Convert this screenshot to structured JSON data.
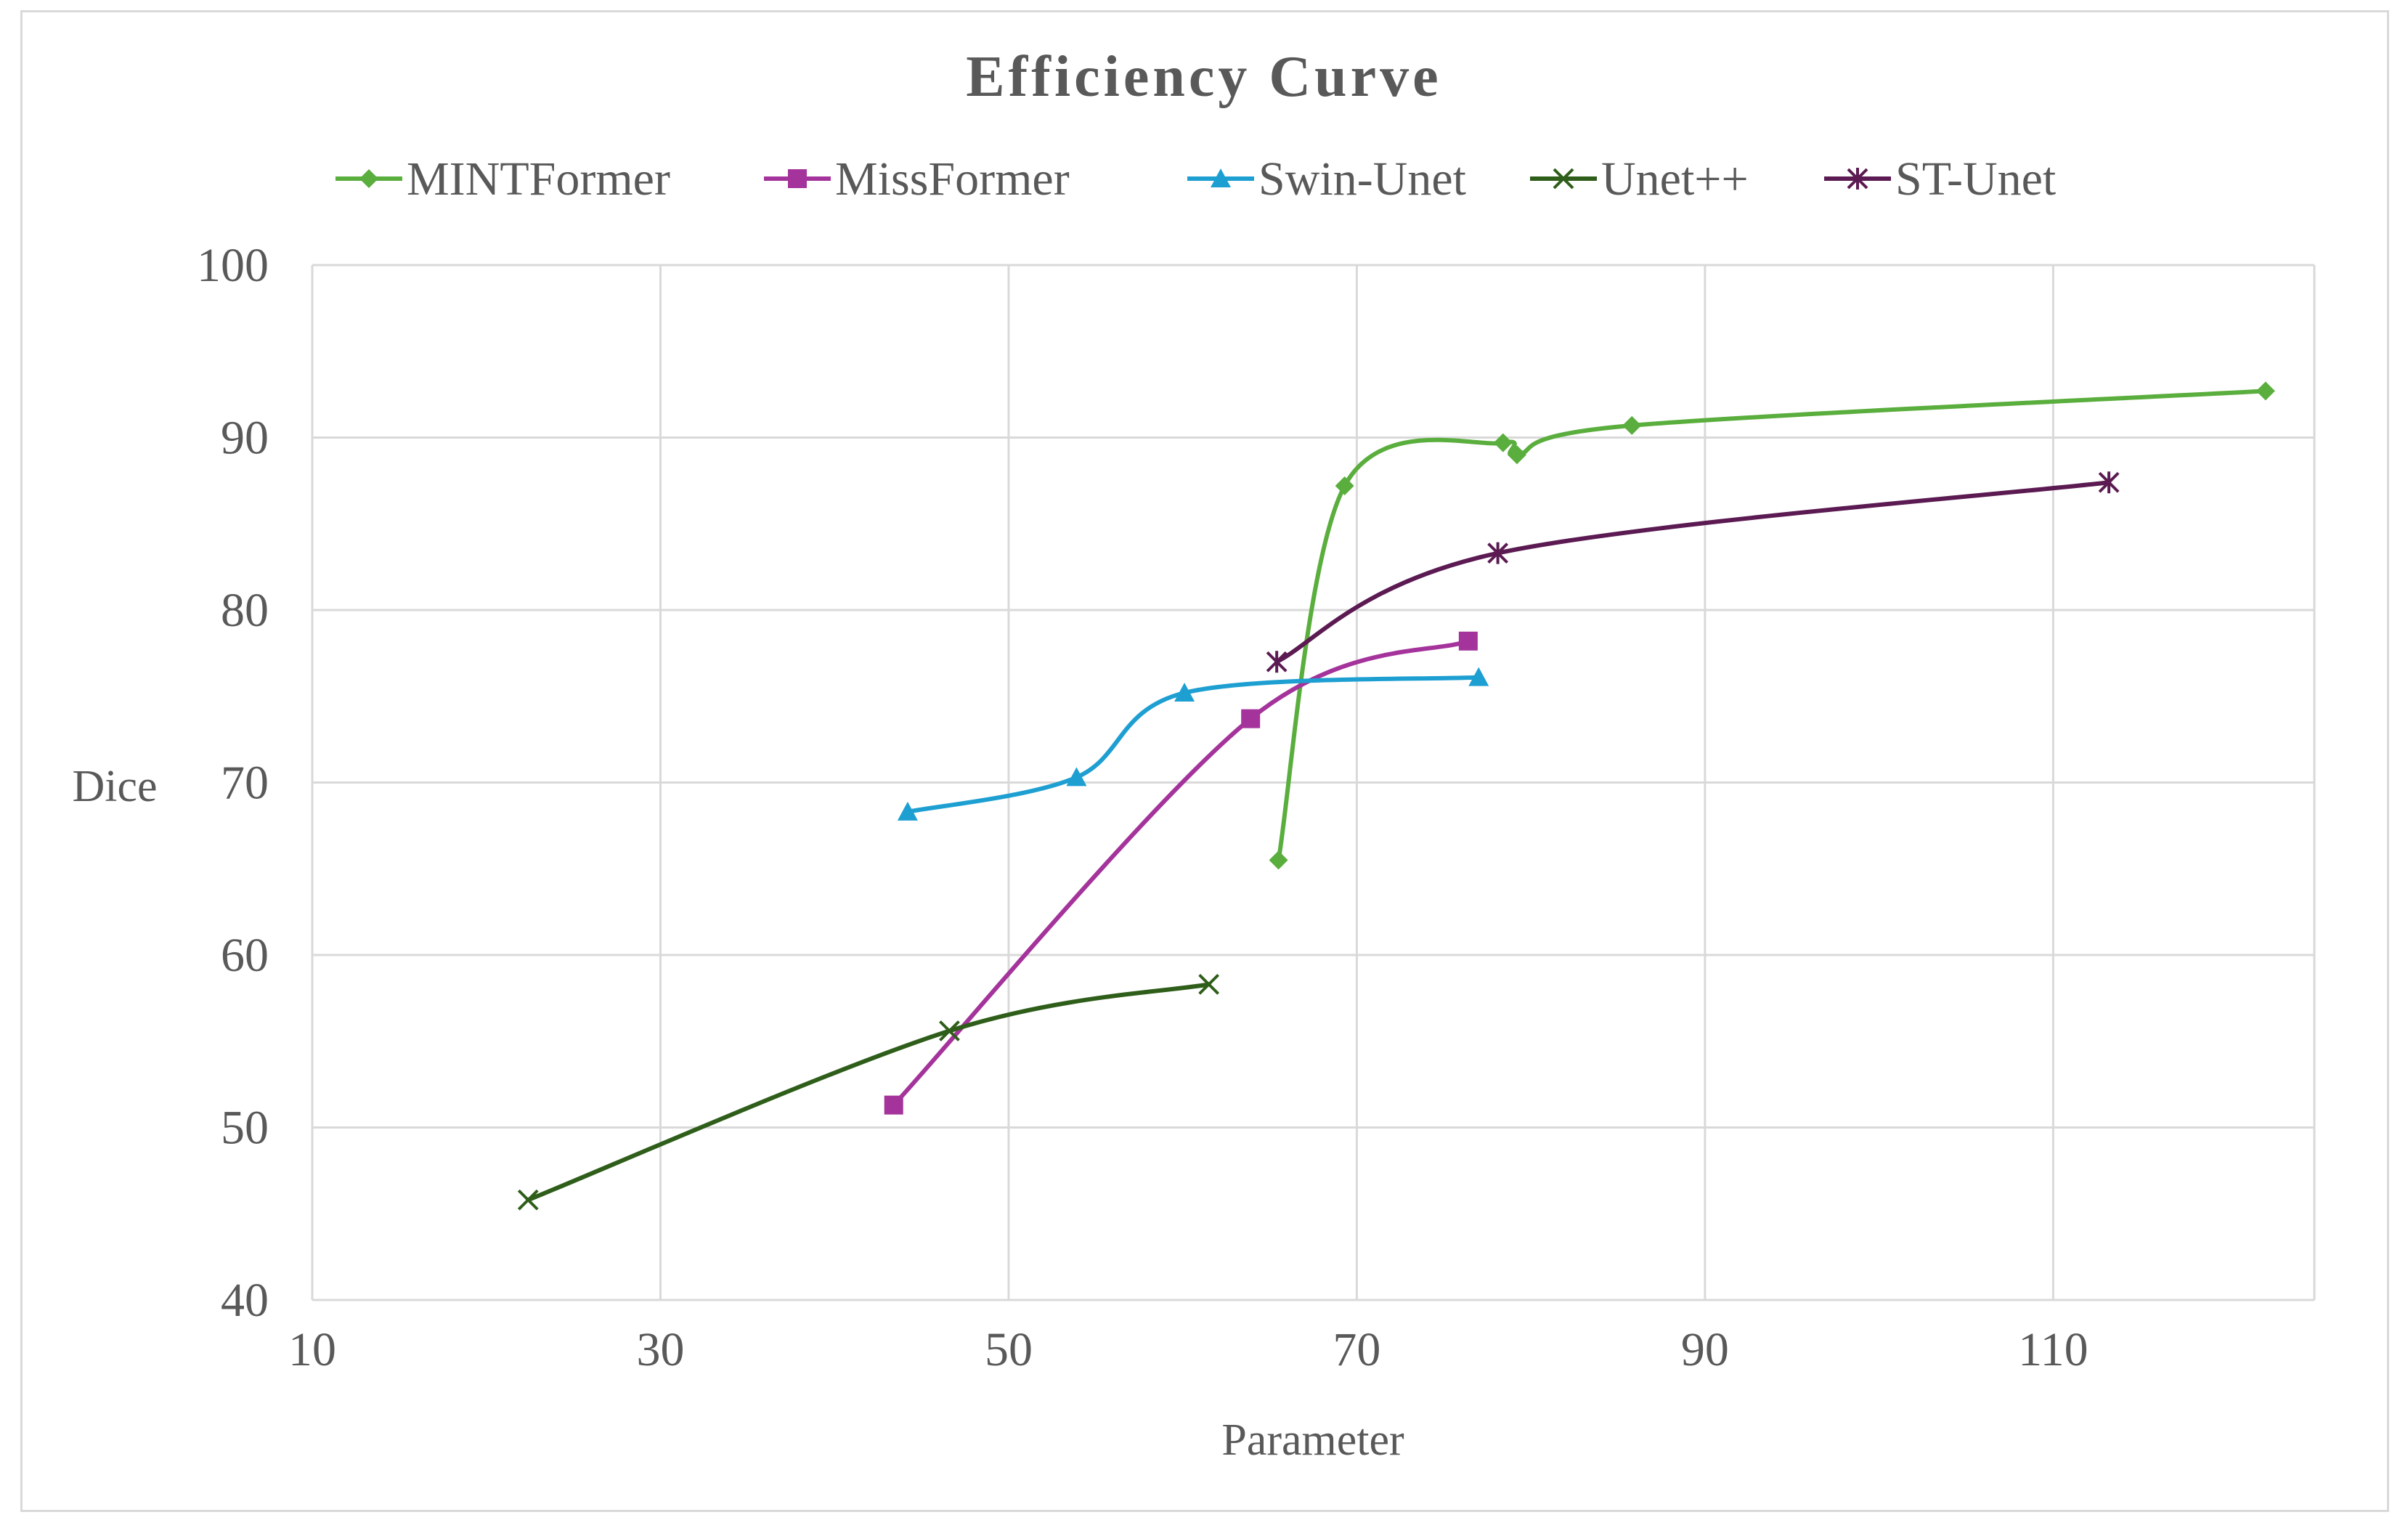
{
  "chart_data": {
    "type": "line",
    "title": "Efficiency Curve",
    "xlabel": "Parameter",
    "ylabel": "Dice",
    "xlim": [
      10,
      125
    ],
    "ylim": [
      40,
      100
    ],
    "x_ticks": [
      10,
      30,
      50,
      70,
      90,
      110
    ],
    "y_ticks": [
      40,
      50,
      60,
      70,
      80,
      90,
      100
    ],
    "x_tick_labels": [
      "10",
      "30",
      "50",
      "70",
      "90",
      "110"
    ],
    "y_tick_labels": [
      "40",
      "50",
      "60",
      "70",
      "80",
      "90",
      "100"
    ],
    "grid": true,
    "legend_position": "top",
    "series": [
      {
        "name": "MINTFormer",
        "color": "#5aae3d",
        "marker": "diamond",
        "x": [
          65.5,
          69.3,
          78.4,
          79.2,
          85.8,
          122.2
        ],
        "y": [
          65.5,
          87.2,
          89.7,
          89.0,
          90.7,
          92.7
        ]
      },
      {
        "name": "MissFormer",
        "color": "#a4339b",
        "marker": "square",
        "x": [
          43.4,
          63.9,
          76.4
        ],
        "y": [
          51.3,
          73.7,
          78.2
        ]
      },
      {
        "name": "Swin-Unet",
        "color": "#1e9fd2",
        "marker": "triangle",
        "x": [
          44.2,
          53.9,
          60.1,
          77.0
        ],
        "y": [
          68.3,
          70.3,
          75.2,
          76.1
        ]
      },
      {
        "name": "Unet++",
        "color": "#2e5e1a",
        "marker": "x",
        "x": [
          22.4,
          46.6,
          61.5
        ],
        "y": [
          45.8,
          55.6,
          58.3
        ]
      },
      {
        "name": "ST-Unet",
        "color": "#5b1a52",
        "marker": "star",
        "x": [
          65.4,
          78.1,
          113.2
        ],
        "y": [
          77.0,
          83.3,
          87.4
        ]
      }
    ]
  },
  "colors": {
    "grid": "#d9d9d9",
    "text": "#595959",
    "frame": "#d9d9d9"
  }
}
